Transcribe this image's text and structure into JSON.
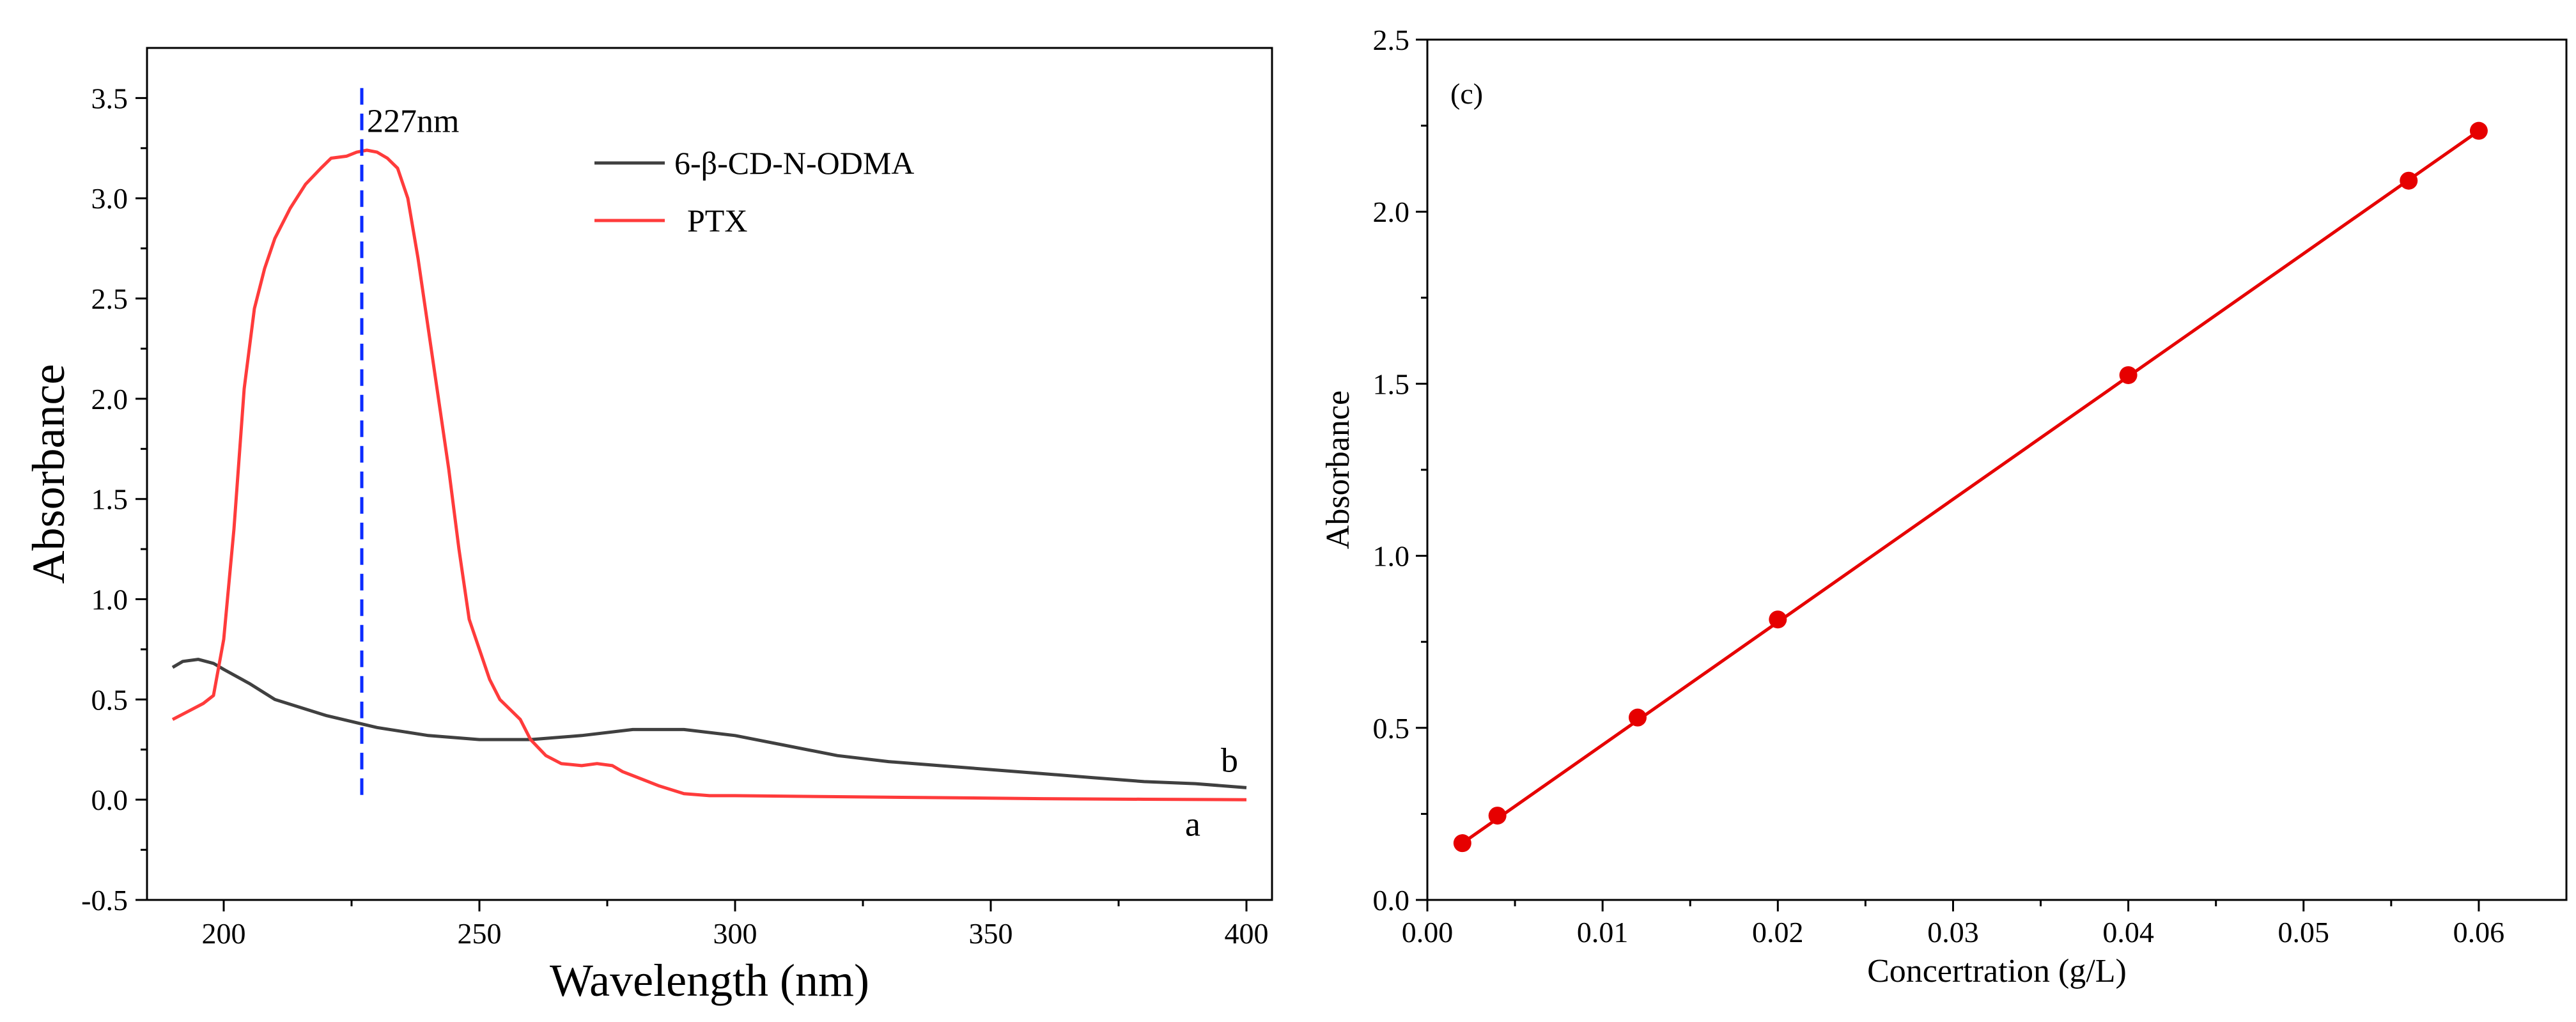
{
  "chart_data": [
    {
      "type": "line",
      "xlabel": "Wavelength (nm)",
      "ylabel": "Absorbance",
      "xlim": [
        185,
        405
      ],
      "ylim": [
        -0.5,
        3.75
      ],
      "xticks": [
        "200",
        "250",
        "300",
        "350",
        "400"
      ],
      "yticks": [
        "-0.5",
        "0.0",
        "0.5",
        "1.0",
        "1.5",
        "2.0",
        "2.5",
        "3.0",
        "3.5"
      ],
      "peak_annotation": {
        "text": "227nm",
        "x": 227
      },
      "legend": [
        "6-β-CD-N-ODMA",
        "PTX"
      ],
      "series": [
        {
          "name": "6-β-CD-N-ODMA",
          "end_label": "b",
          "color": "#404040",
          "x": [
            190,
            192,
            195,
            198,
            200,
            205,
            210,
            220,
            230,
            240,
            250,
            260,
            270,
            280,
            290,
            300,
            310,
            320,
            330,
            340,
            350,
            360,
            370,
            380,
            390,
            400
          ],
          "y": [
            0.66,
            0.69,
            0.7,
            0.68,
            0.65,
            0.58,
            0.5,
            0.42,
            0.36,
            0.32,
            0.3,
            0.3,
            0.32,
            0.35,
            0.35,
            0.32,
            0.27,
            0.22,
            0.19,
            0.17,
            0.15,
            0.13,
            0.11,
            0.09,
            0.08,
            0.06
          ]
        },
        {
          "name": "PTX",
          "end_label": "a",
          "color": "#ff3b3b",
          "x": [
            190,
            193,
            196,
            198,
            200,
            202,
            204,
            206,
            208,
            210,
            213,
            216,
            219,
            221,
            224,
            226,
            228,
            230,
            232,
            234,
            236,
            238,
            240,
            242,
            244,
            246,
            248,
            250,
            252,
            254,
            256,
            258,
            260,
            263,
            266,
            270,
            273,
            276,
            278,
            280,
            285,
            290,
            295,
            300,
            320,
            340,
            360,
            380,
            400
          ],
          "y": [
            0.4,
            0.44,
            0.48,
            0.52,
            0.8,
            1.35,
            2.05,
            2.45,
            2.65,
            2.8,
            2.95,
            3.07,
            3.15,
            3.2,
            3.21,
            3.23,
            3.24,
            3.23,
            3.2,
            3.15,
            3.0,
            2.7,
            2.35,
            2.0,
            1.65,
            1.25,
            0.9,
            0.75,
            0.6,
            0.5,
            0.45,
            0.4,
            0.3,
            0.22,
            0.18,
            0.17,
            0.18,
            0.17,
            0.14,
            0.12,
            0.07,
            0.03,
            0.02,
            0.02,
            0.015,
            0.01,
            0.005,
            0.002,
            0.0
          ]
        }
      ]
    },
    {
      "type": "scatter",
      "panel_label": "(c)",
      "xlabel": "Concertration (g/L)",
      "ylabel": "Absorbance",
      "xlim": [
        0.0,
        0.065
      ],
      "ylim": [
        0.0,
        2.5
      ],
      "xticks": [
        "0.00",
        "0.01",
        "0.02",
        "0.03",
        "0.04",
        "0.05",
        "0.06"
      ],
      "yticks": [
        "0.0",
        "0.5",
        "1.0",
        "1.5",
        "2.0",
        "2.5"
      ],
      "color": "#e60000",
      "points": {
        "x": [
          0.002,
          0.004,
          0.012,
          0.02,
          0.04,
          0.056,
          0.06
        ],
        "y": [
          0.165,
          0.245,
          0.53,
          0.815,
          1.525,
          2.09,
          2.235
        ]
      },
      "fit_line": {
        "x": [
          0.002,
          0.06
        ],
        "y": [
          0.165,
          2.235
        ]
      }
    }
  ]
}
